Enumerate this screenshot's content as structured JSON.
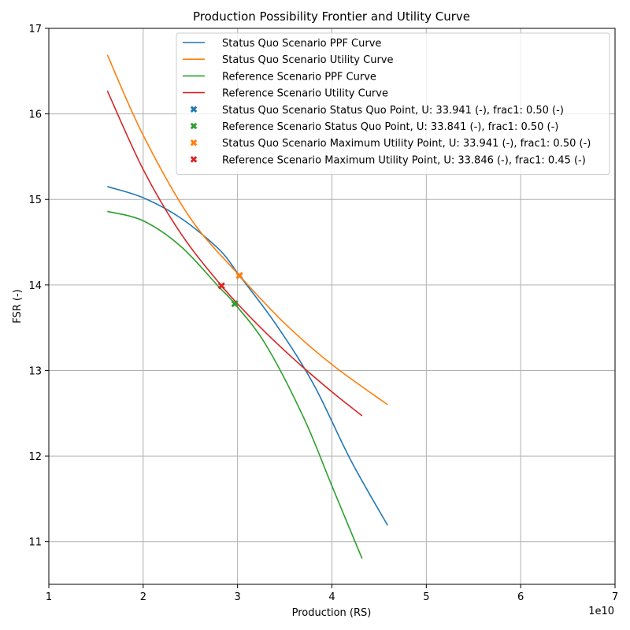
{
  "chart_data": {
    "type": "line",
    "title": "Production Possibility Frontier and Utility Curve",
    "xlabel": "Production (RS)",
    "ylabel": "FSR (-)",
    "x_scale_label": "1e10",
    "x_scale": 10000000000.0,
    "xlim": [
      1,
      7
    ],
    "ylim": [
      10.5,
      17
    ],
    "x_ticks": [
      1,
      2,
      3,
      4,
      5,
      6,
      7
    ],
    "y_ticks": [
      11,
      12,
      13,
      14,
      15,
      16,
      17
    ],
    "grid": true,
    "legend_position": "upper-right",
    "series": [
      {
        "name": "Status Quo Scenario PPF Curve",
        "color": "#1f77b4",
        "points": [
          [
            1.62,
            15.15
          ],
          [
            2.0,
            15.02
          ],
          [
            2.4,
            14.78
          ],
          [
            2.8,
            14.42
          ],
          [
            3.02,
            14.11
          ],
          [
            3.4,
            13.55
          ],
          [
            3.8,
            12.85
          ],
          [
            4.2,
            11.95
          ],
          [
            4.59,
            11.19
          ]
        ]
      },
      {
        "name": "Status Quo Scenario Utility Curve",
        "color": "#ff7f0e",
        "points": [
          [
            1.62,
            16.69
          ],
          [
            2.0,
            15.75
          ],
          [
            2.5,
            14.78
          ],
          [
            3.02,
            14.11
          ],
          [
            3.5,
            13.55
          ],
          [
            4.0,
            13.07
          ],
          [
            4.59,
            12.6
          ]
        ]
      },
      {
        "name": "Reference Scenario PPF Curve",
        "color": "#2ca02c",
        "points": [
          [
            1.62,
            14.86
          ],
          [
            2.0,
            14.75
          ],
          [
            2.4,
            14.45
          ],
          [
            2.8,
            13.98
          ],
          [
            2.97,
            13.78
          ],
          [
            3.3,
            13.3
          ],
          [
            3.7,
            12.45
          ],
          [
            4.0,
            11.65
          ],
          [
            4.32,
            10.8
          ]
        ]
      },
      {
        "name": "Reference Scenario Utility Curve",
        "color": "#d62728",
        "points": [
          [
            1.62,
            16.27
          ],
          [
            2.0,
            15.35
          ],
          [
            2.4,
            14.6
          ],
          [
            2.83,
            13.99
          ],
          [
            3.2,
            13.55
          ],
          [
            3.6,
            13.13
          ],
          [
            4.0,
            12.75
          ],
          [
            4.32,
            12.47
          ]
        ]
      }
    ],
    "markers": [
      {
        "name": "Status Quo Scenario Status Quo Point, U: 33.941 (-), frac1: 0.50 (-)",
        "color": "#1f77b4",
        "x": 3.02,
        "y": 14.11
      },
      {
        "name": "Reference Scenario Status Quo Point, U: 33.841 (-), frac1: 0.50 (-)",
        "color": "#2ca02c",
        "x": 2.97,
        "y": 13.78
      },
      {
        "name": "Status Quo Scenario Maximum Utility Point, U: 33.941 (-), frac1: 0.50 (-)",
        "color": "#ff7f0e",
        "x": 3.02,
        "y": 14.11
      },
      {
        "name": "Reference Scenario Maximum Utility Point, U: 33.846 (-), frac1: 0.45 (-)",
        "color": "#d62728",
        "x": 2.83,
        "y": 13.99
      }
    ]
  }
}
